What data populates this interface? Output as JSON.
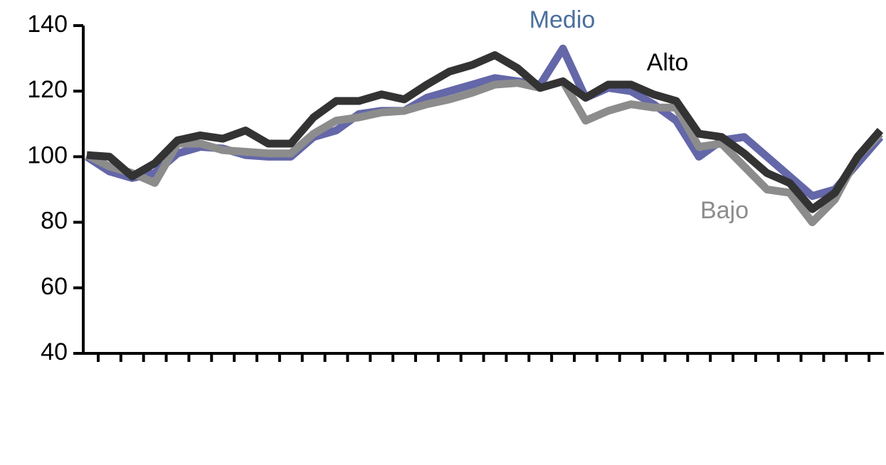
{
  "chart_data": {
    "type": "line",
    "categories": [
      null,
      null,
      null,
      null,
      null,
      null,
      null,
      null,
      null,
      null,
      null,
      null,
      null,
      null,
      null,
      null,
      null,
      null,
      null,
      null,
      null,
      null,
      null,
      null,
      null,
      null,
      null,
      null,
      null,
      null,
      null,
      null,
      null,
      null,
      null,
      null
    ],
    "series": [
      {
        "name": "Medio",
        "color": "#6467a8",
        "values": [
          100,
          95.5,
          93.5,
          95,
          101,
          103,
          102.5,
          100.5,
          100,
          100,
          106,
          108,
          113,
          114,
          114,
          118,
          120,
          122,
          124,
          123,
          122,
          133,
          118,
          121,
          120,
          116,
          111,
          100,
          105,
          106,
          100,
          94,
          88,
          90,
          98,
          106
        ]
      },
      {
        "name": "Bajo",
        "color": "#8c8c8c",
        "values": [
          100.5,
          97,
          95,
          92,
          104,
          104,
          102,
          101.5,
          101,
          101,
          107,
          111,
          112,
          113.5,
          114,
          116,
          117.5,
          119.5,
          122,
          122.5,
          121,
          123,
          111,
          114,
          116,
          115,
          115,
          103,
          104,
          97,
          90,
          89,
          80,
          87,
          100,
          107
        ]
      },
      {
        "name": "Alto",
        "color": "#333333",
        "values": [
          100.5,
          100,
          94,
          98,
          105,
          106.5,
          105.5,
          108,
          104,
          104,
          112,
          117,
          117,
          119,
          117.5,
          122,
          126,
          128,
          131,
          127,
          121,
          123,
          118,
          122,
          122,
          119,
          117,
          107,
          106,
          101,
          95,
          92,
          84,
          89,
          100,
          108
        ]
      }
    ],
    "ylim": [
      40,
      140
    ],
    "yticks": [
      40,
      60,
      80,
      100,
      120,
      140
    ]
  }
}
